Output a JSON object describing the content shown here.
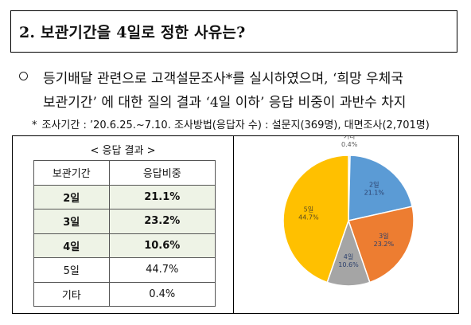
{
  "title": "2. 보관기간을 4일로 정한 사유는?",
  "body": {
    "bullet": "ㅇ",
    "line1": "등기배달 관련으로 고객설문조사*를 실시하였으며, ‘희망 우체국",
    "line2": "보관기간’ 에 대한 질의 결과 ‘4일 이하’ 응답 비중이 과반수 차지"
  },
  "note": {
    "star": "*",
    "text": "조사기간 : ’20.6.25.~7.10. 조사방법(응답자 수) : 설문지(369명), 대면조사(2,701명)"
  },
  "table": {
    "caption": "< 응답 결과 >",
    "headers": [
      "보관기간",
      "응답비중"
    ],
    "rows": [
      {
        "period": "2일",
        "share": "21.1%",
        "highlight": true
      },
      {
        "period": "3일",
        "share": "23.2%",
        "highlight": true
      },
      {
        "period": "4일",
        "share": "10.6%",
        "highlight": true
      },
      {
        "period": "5일",
        "share": "44.7%",
        "highlight": false
      },
      {
        "period": "기타",
        "share": "0.4%",
        "highlight": false
      }
    ]
  },
  "chart_data": {
    "type": "pie",
    "slices": [
      {
        "label": "기타",
        "value": 0.4,
        "value_label": "0.4%",
        "color": "#7f9fd0"
      },
      {
        "label": "2일",
        "value": 21.1,
        "value_label": "21.1%",
        "color": "#5b9bd5"
      },
      {
        "label": "3일",
        "value": 23.2,
        "value_label": "23.2%",
        "color": "#ed7d31"
      },
      {
        "label": "4일",
        "value": 10.6,
        "value_label": "10.6%",
        "color": "#a5a5a5"
      },
      {
        "label": "5일",
        "value": 44.7,
        "value_label": "44.7%",
        "color": "#ffc000"
      }
    ]
  }
}
